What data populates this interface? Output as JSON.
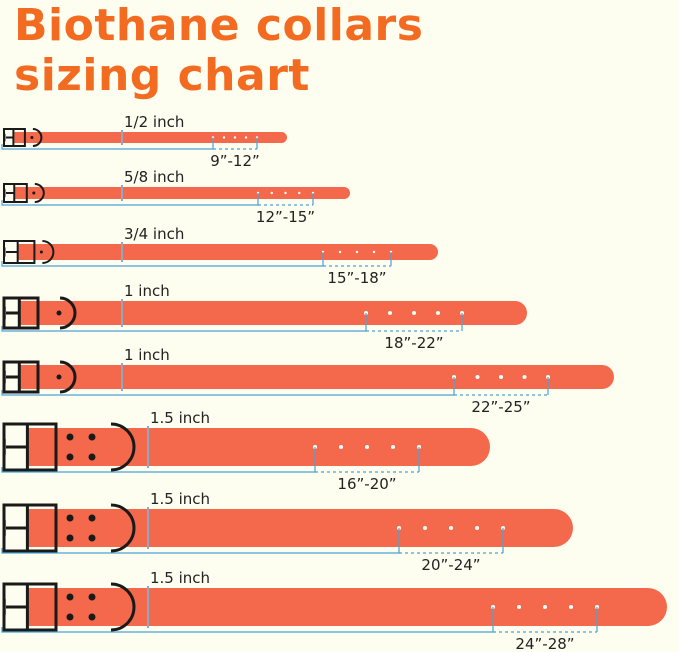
{
  "title": {
    "line1": "Biothane collars",
    "line2": "sizing chart"
  },
  "colors": {
    "title": "#f26b21",
    "strap": "#f4694b",
    "hardware": "#1a1a1a",
    "measure_line": "#4aa3d8",
    "background": "#fdfdf0"
  },
  "collars": [
    {
      "width": "1/2 inch",
      "size": "9”-12”"
    },
    {
      "width": "5/8 inch",
      "size": "12”-15”"
    },
    {
      "width": "3/4 inch",
      "size": "15”-18”"
    },
    {
      "width": "1 inch",
      "size": "18”-22”"
    },
    {
      "width": "1 inch",
      "size": "22”-25”"
    },
    {
      "width": "1.5 inch",
      "size": "16”-20”"
    },
    {
      "width": "1.5 inch",
      "size": "20”-24”"
    },
    {
      "width": "1.5 inch",
      "size": "24”-28”"
    }
  ]
}
